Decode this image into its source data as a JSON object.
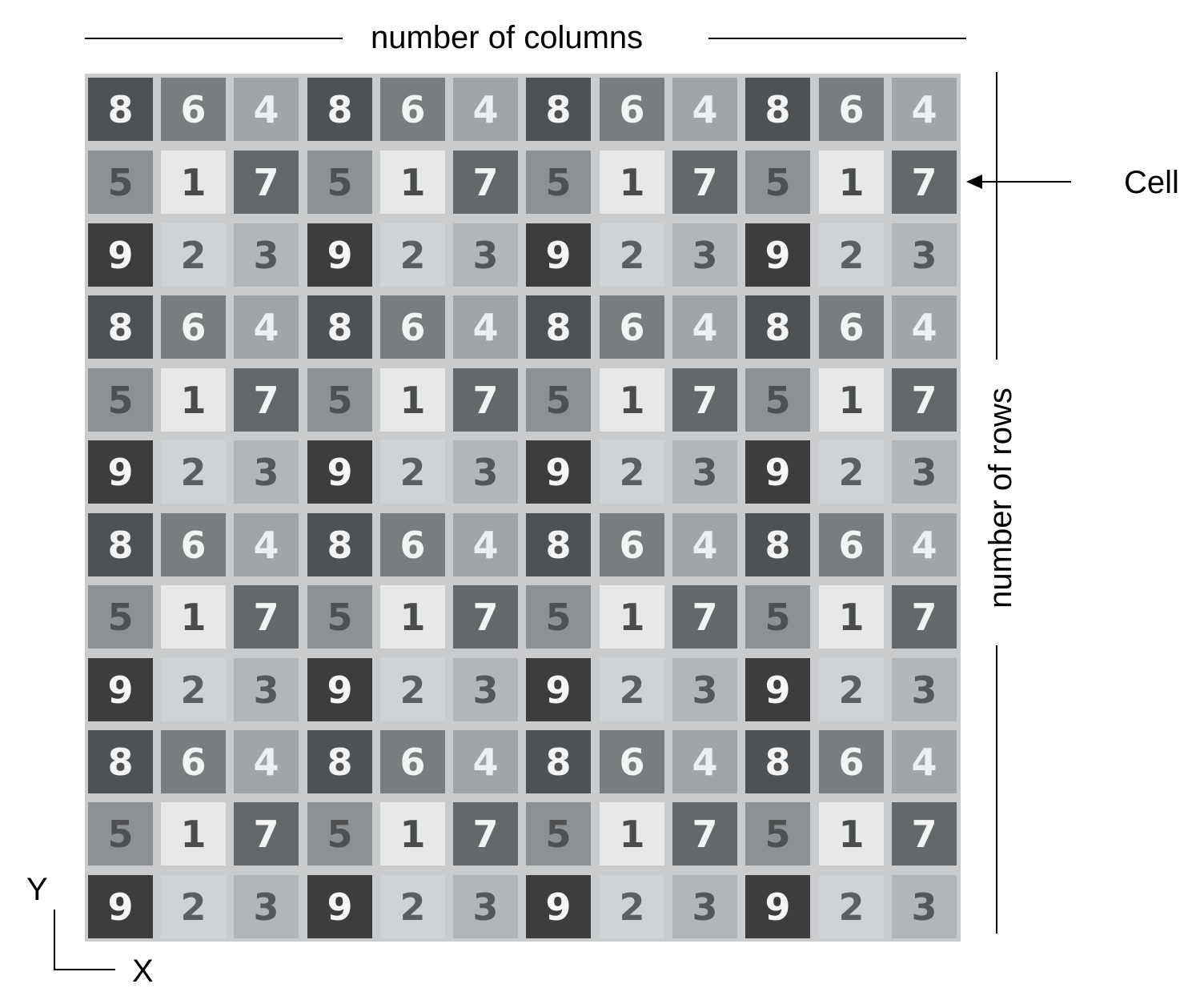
{
  "labels": {
    "columns": "number of columns",
    "rows": "number of rows",
    "cell": "Cell",
    "axis_y": "Y",
    "axis_x": "X"
  },
  "pattern_rows": [
    [
      "8",
      "6",
      "4"
    ],
    [
      "5",
      "1",
      "7"
    ],
    [
      "9",
      "2",
      "3"
    ]
  ],
  "grid": {
    "rows": 12,
    "columns": 12
  },
  "value_colors": {
    "1": {
      "bg": "#e6e8e9",
      "fg": "#4a4c4e"
    },
    "2": {
      "bg": "#d0d3d5",
      "fg": "#5c5f61"
    },
    "3": {
      "bg": "#b3b6b8",
      "fg": "#555759"
    },
    "4": {
      "bg": "#a2a5a7",
      "fg": "#eeeff0"
    },
    "5": {
      "bg": "#8e9193",
      "fg": "#4e5052"
    },
    "6": {
      "bg": "#7a7d7f",
      "fg": "#f2f3f3"
    },
    "7": {
      "bg": "#65686a",
      "fg": "#f2f3f3"
    },
    "8": {
      "bg": "#4f5254",
      "fg": "#f4f4f4"
    },
    "9": {
      "bg": "#3b3d3f",
      "fg": "#f6f6f6"
    }
  },
  "grid_border_color": "#c9cbcc"
}
